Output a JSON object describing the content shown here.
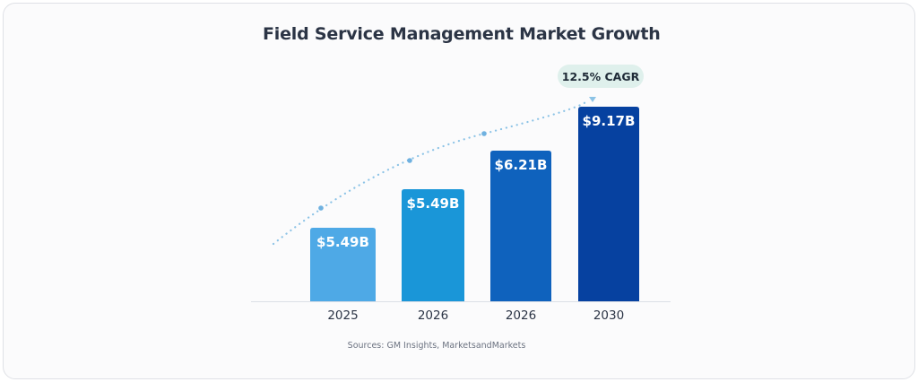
{
  "chart_data": {
    "type": "bar",
    "title": "Field Service Management Market Growth",
    "categories": [
      "2025",
      "2026",
      "2026",
      "2030"
    ],
    "values": [
      5.49,
      5.49,
      6.21,
      9.17
    ],
    "data_labels": [
      "$5.49B",
      "$5.49B",
      "$6.21B",
      "$9.17B"
    ],
    "unit": "USD billions",
    "xlabel": "",
    "ylabel": "",
    "grid": false,
    "colors": [
      "#4ea9e6",
      "#1a96d8",
      "#0f62bd",
      "#0641a0"
    ],
    "annotation": "12.5% CAGR",
    "source": "Sources: GM Insights, MarketsandMarkets"
  }
}
